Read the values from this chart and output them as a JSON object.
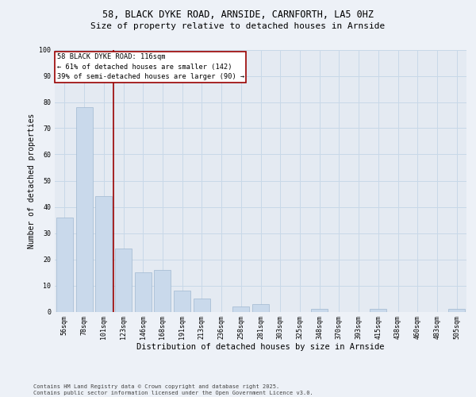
{
  "title_line1": "58, BLACK DYKE ROAD, ARNSIDE, CARNFORTH, LA5 0HZ",
  "title_line2": "Size of property relative to detached houses in Arnside",
  "xlabel": "Distribution of detached houses by size in Arnside",
  "ylabel": "Number of detached properties",
  "categories": [
    "56sqm",
    "78sqm",
    "101sqm",
    "123sqm",
    "146sqm",
    "168sqm",
    "191sqm",
    "213sqm",
    "236sqm",
    "258sqm",
    "281sqm",
    "303sqm",
    "325sqm",
    "348sqm",
    "370sqm",
    "393sqm",
    "415sqm",
    "438sqm",
    "460sqm",
    "483sqm",
    "505sqm"
  ],
  "values": [
    36,
    78,
    44,
    24,
    15,
    16,
    8,
    5,
    0,
    2,
    3,
    0,
    0,
    1,
    0,
    0,
    1,
    0,
    0,
    0,
    1
  ],
  "bar_color": "#c9d9eb",
  "bar_edge_color": "#a0b8d0",
  "vline_pos": 2.5,
  "vline_color": "#990000",
  "annotation_text": "58 BLACK DYKE ROAD: 116sqm\n← 61% of detached houses are smaller (142)\n39% of semi-detached houses are larger (90) →",
  "annotation_box_color": "white",
  "annotation_box_edge": "#990000",
  "grid_color": "#c8d8e8",
  "background_color": "#edf1f7",
  "plot_bg_color": "#e4eaf2",
  "footer_text": "Contains HM Land Registry data © Crown copyright and database right 2025.\nContains public sector information licensed under the Open Government Licence v3.0.",
  "ylim": [
    0,
    100
  ],
  "yticks": [
    0,
    10,
    20,
    30,
    40,
    50,
    60,
    70,
    80,
    90,
    100
  ],
  "title1_fontsize": 8.5,
  "title2_fontsize": 8.0,
  "xlabel_fontsize": 7.5,
  "ylabel_fontsize": 7.0,
  "tick_fontsize": 6.0,
  "annotation_fontsize": 6.2,
  "footer_fontsize": 5.0
}
